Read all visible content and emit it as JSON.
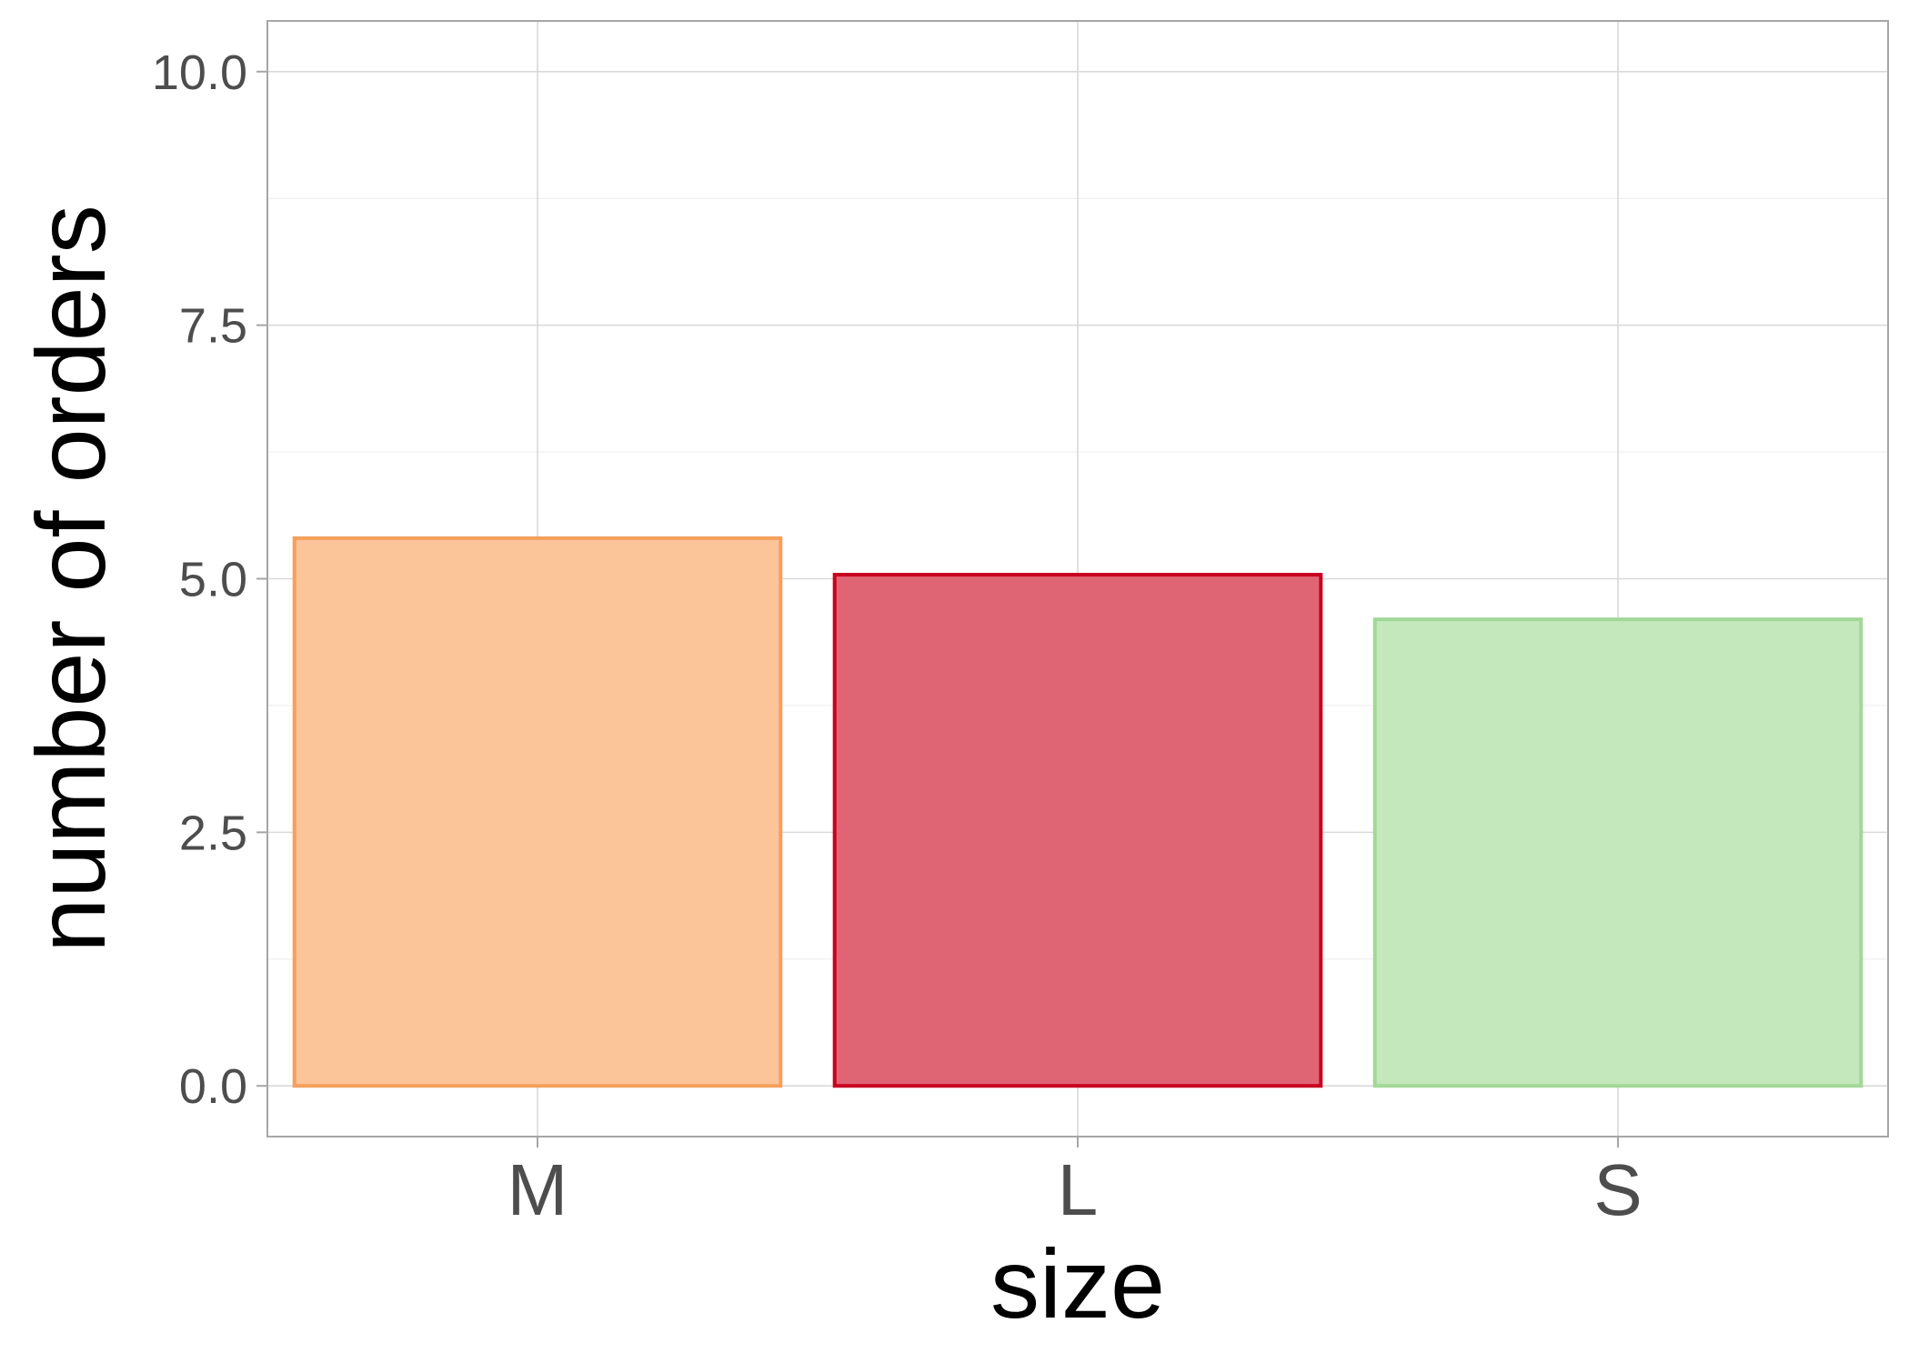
{
  "chart_data": {
    "type": "bar",
    "title": "",
    "xlabel": "size",
    "ylabel": "number of orders",
    "categories": [
      "M",
      "L",
      "S"
    ],
    "values": [
      5.4,
      5.04,
      4.6
    ],
    "ylim": [
      -0.5,
      10.5
    ],
    "yticks": [
      0.0,
      2.5,
      5.0,
      7.5,
      10.0
    ],
    "ytick_labels": [
      "0.0",
      "2.5",
      "5.0",
      "7.5",
      "10.0"
    ],
    "grid": true,
    "legend": "none",
    "colors": {
      "fills": [
        "#FCC499",
        "#E06574",
        "#C4E8BC"
      ],
      "strokes": [
        "#F5A05B",
        "#C8001F",
        "#A2D897"
      ]
    }
  }
}
